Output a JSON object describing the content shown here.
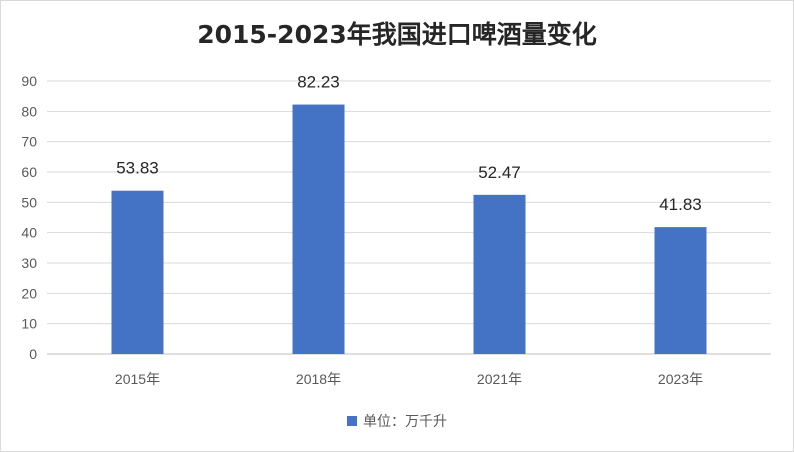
{
  "chart_data": {
    "type": "bar",
    "title": "2015-2023年我国进口啤酒量变化",
    "categories": [
      "2015年",
      "2018年",
      "2021年",
      "2023年"
    ],
    "series": [
      {
        "name": "单位：万千升",
        "values": [
          53.83,
          82.23,
          52.47,
          41.83
        ],
        "labels": [
          "53.83",
          "82.23",
          "52.47",
          "41.83"
        ]
      }
    ],
    "ylim": [
      0,
      90
    ],
    "yticks": [
      0,
      10,
      20,
      30,
      40,
      50,
      60,
      70,
      80,
      90
    ],
    "grid": true,
    "legend_position": "bottom",
    "colors": {
      "bar": "#4472c4",
      "grid": "#d9d9d9",
      "axis": "#bfbfbf"
    }
  }
}
